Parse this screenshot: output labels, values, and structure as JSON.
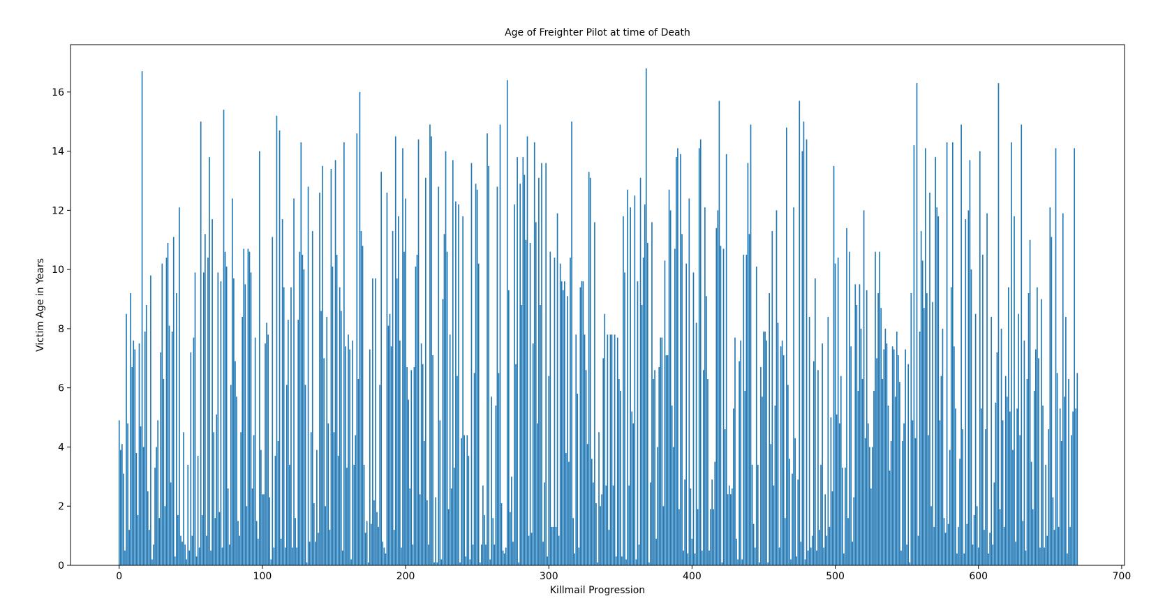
{
  "chart_data": {
    "type": "bar",
    "title": "Age of Freighter Pilot at time of Death",
    "xlabel": "Killmail Progression",
    "ylabel": "Victim Age in Years",
    "color": "#1f77b4",
    "xlim": [
      -34,
      702
    ],
    "ylim": [
      0,
      17.6
    ],
    "xticks": [
      0,
      100,
      200,
      300,
      400,
      500,
      600,
      700
    ],
    "yticks": [
      0,
      2,
      4,
      6,
      8,
      10,
      12,
      14,
      16
    ],
    "x": [
      0,
      1,
      2,
      3,
      4,
      5,
      6,
      7,
      8,
      9,
      10,
      11,
      12,
      13,
      14,
      15,
      16,
      17,
      18,
      19,
      20,
      21,
      22,
      23,
      24,
      25,
      26,
      27,
      28,
      29,
      30,
      31,
      32,
      33,
      34,
      35,
      36,
      37,
      38,
      39,
      40,
      41,
      42,
      43,
      44,
      45,
      46,
      47,
      48,
      49,
      50,
      51,
      52,
      53,
      54,
      55,
      56,
      57,
      58,
      59,
      60,
      61,
      62,
      63,
      64,
      65,
      66,
      67,
      68,
      69,
      70,
      71,
      72,
      73,
      74,
      75,
      76,
      77,
      78,
      79,
      80,
      81,
      82,
      83,
      84,
      85,
      86,
      87,
      88,
      89,
      90,
      91,
      92,
      93,
      94,
      95,
      96,
      97,
      98,
      99,
      100,
      101,
      102,
      103,
      104,
      105,
      106,
      107,
      108,
      109,
      110,
      111,
      112,
      113,
      114,
      115,
      116,
      117,
      118,
      119,
      120,
      121,
      122,
      123,
      124,
      125,
      126,
      127,
      128,
      129,
      130,
      131,
      132,
      133,
      134,
      135,
      136,
      137,
      138,
      139,
      140,
      141,
      142,
      143,
      144,
      145,
      146,
      147,
      148,
      149,
      150,
      151,
      152,
      153,
      154,
      155,
      156,
      157,
      158,
      159,
      160,
      161,
      162,
      163,
      164,
      165,
      166,
      167,
      168,
      169,
      170,
      171,
      172,
      173,
      174,
      175,
      176,
      177,
      178,
      179,
      180,
      181,
      182,
      183,
      184,
      185,
      186,
      187,
      188,
      189,
      190,
      191,
      192,
      193,
      194,
      195,
      196,
      197,
      198,
      199,
      200,
      201,
      202,
      203,
      204,
      205,
      206,
      207,
      208,
      209,
      210,
      211,
      212,
      213,
      214,
      215,
      216,
      217,
      218,
      219,
      220,
      221,
      222,
      223,
      224,
      225,
      226,
      227,
      228,
      229,
      230,
      231,
      232,
      233,
      234,
      235,
      236,
      237,
      238,
      239,
      240,
      241,
      242,
      243,
      244,
      245,
      246,
      247,
      248,
      249,
      250,
      251,
      252,
      253,
      254,
      255,
      256,
      257,
      258,
      259,
      260,
      261,
      262,
      263,
      264,
      265,
      266,
      267,
      268,
      269,
      270,
      271,
      272,
      273,
      274,
      275,
      276,
      277,
      278,
      279,
      280,
      281,
      282,
      283,
      284,
      285,
      286,
      287,
      288,
      289,
      290,
      291,
      292,
      293,
      294,
      295,
      296,
      297,
      298,
      299,
      300,
      301,
      302,
      303,
      304,
      305,
      306,
      307,
      308,
      309,
      310,
      311,
      312,
      313,
      314,
      315,
      316,
      317,
      318,
      319,
      320,
      321,
      322,
      323,
      324,
      325,
      326,
      327,
      328,
      329,
      330,
      331,
      332,
      333,
      334,
      335,
      336,
      337,
      338,
      339,
      340,
      341,
      342,
      343,
      344,
      345,
      346,
      347,
      348,
      349,
      350,
      351,
      352,
      353,
      354,
      355,
      356,
      357,
      358,
      359,
      360,
      361,
      362,
      363,
      364,
      365,
      366,
      367,
      368,
      369,
      370,
      371,
      372,
      373,
      374,
      375,
      376,
      377,
      378,
      379,
      380,
      381,
      382,
      383,
      384,
      385,
      386,
      387,
      388,
      389,
      390,
      391,
      392,
      393,
      394,
      395,
      396,
      397,
      398,
      399,
      400,
      401,
      402,
      403,
      404,
      405,
      406,
      407,
      408,
      409,
      410,
      411,
      412,
      413,
      414,
      415,
      416,
      417,
      418,
      419,
      420,
      421,
      422,
      423,
      424,
      425,
      426,
      427,
      428,
      429,
      430,
      431,
      432,
      433,
      434,
      435,
      436,
      437,
      438,
      439,
      440,
      441,
      442,
      443,
      444,
      445,
      446,
      447,
      448,
      449,
      450,
      451,
      452,
      453,
      454,
      455,
      456,
      457,
      458,
      459,
      460,
      461,
      462,
      463,
      464,
      465,
      466,
      467,
      468,
      469,
      470,
      471,
      472,
      473,
      474,
      475,
      476,
      477,
      478,
      479,
      480,
      481,
      482,
      483,
      484,
      485,
      486,
      487,
      488,
      489,
      490,
      491,
      492,
      493,
      494,
      495,
      496,
      497,
      498,
      499,
      500,
      501,
      502,
      503,
      504,
      505,
      506,
      507,
      508,
      509,
      510,
      511,
      512,
      513,
      514,
      515,
      516,
      517,
      518,
      519,
      520,
      521,
      522,
      523,
      524,
      525,
      526,
      527,
      528,
      529,
      530,
      531,
      532,
      533,
      534,
      535,
      536,
      537,
      538,
      539,
      540,
      541,
      542,
      543,
      544,
      545,
      546,
      547,
      548,
      549,
      550,
      551,
      552,
      553,
      554,
      555,
      556,
      557,
      558,
      559,
      560,
      561,
      562,
      563,
      564,
      565,
      566,
      567,
      568,
      569,
      570,
      571,
      572,
      573,
      574,
      575,
      576,
      577,
      578,
      579,
      580,
      581,
      582,
      583,
      584,
      585,
      586,
      587,
      588,
      589,
      590,
      591,
      592,
      593,
      594,
      595,
      596,
      597,
      598,
      599,
      600,
      601,
      602,
      603,
      604,
      605,
      606,
      607,
      608,
      609,
      610,
      611,
      612,
      613,
      614,
      615,
      616,
      617,
      618,
      619,
      620,
      621,
      622,
      623,
      624,
      625,
      626,
      627,
      628,
      629,
      630,
      631,
      632,
      633,
      634,
      635,
      636,
      637,
      638,
      639,
      640,
      641,
      642,
      643,
      644,
      645,
      646,
      647,
      648,
      649,
      650,
      651,
      652,
      653,
      654,
      655,
      656,
      657,
      658,
      659,
      660,
      661,
      662,
      663,
      664,
      665,
      666,
      667,
      668,
      669
    ],
    "values": [
      4.9,
      3.9,
      4.1,
      3.1,
      0.5,
      8.5,
      4.8,
      1.2,
      9.2,
      6.7,
      7.6,
      7.3,
      3.8,
      1.7,
      7.5,
      4.7,
      16.7,
      4.0,
      7.9,
      8.8,
      2.5,
      1.2,
      9.8,
      0.2,
      0.7,
      3.3,
      4.0,
      4.9,
      1.6,
      7.2,
      10.2,
      6.3,
      2.0,
      10.4,
      10.9,
      8.1,
      2.8,
      7.9,
      11.1,
      0.3,
      9.2,
      1.7,
      12.1,
      1.0,
      0.8,
      4.5,
      0.7,
      0.2,
      3.4,
      0.5,
      7.2,
      1.0,
      7.7,
      9.9,
      0.3,
      3.7,
      0.6,
      15.0,
      1.7,
      9.9,
      11.2,
      1.0,
      10.4,
      13.8,
      0.5,
      11.7,
      4.5,
      1.6,
      5.1,
      9.9,
      1.8,
      9.6,
      0.6,
      15.4,
      10.6,
      10.1,
      2.6,
      0.7,
      6.1,
      12.4,
      9.7,
      6.9,
      5.7,
      1.5,
      1.0,
      4.5,
      8.4,
      10.7,
      9.5,
      2.0,
      10.7,
      10.6,
      9.9,
      2.6,
      4.4,
      7.7,
      1.5,
      0.9,
      14.0,
      3.9,
      2.4,
      2.4,
      7.5,
      8.2,
      7.8,
      2.3,
      0.2,
      11.1,
      0.6,
      3.7,
      15.2,
      4.2,
      14.7,
      0.9,
      11.7,
      9.4,
      0.6,
      6.1,
      8.3,
      3.4,
      9.4,
      0.6,
      12.4,
      1.6,
      0.6,
      8.3,
      10.6,
      14.3,
      10.5,
      10.0,
      6.1,
      0.1,
      12.8,
      0.8,
      4.5,
      11.3,
      2.1,
      0.8,
      3.9,
      1.1,
      12.6,
      8.6,
      13.5,
      7.0,
      2.0,
      8.4,
      4.8,
      1.2,
      13.4,
      10.1,
      4.5,
      13.7,
      10.5,
      3.7,
      9.4,
      8.6,
      0.5,
      14.3,
      7.4,
      3.3,
      7.8,
      7.3,
      0.2,
      7.6,
      3.4,
      4.4,
      14.6,
      6.3,
      16.0,
      11.3,
      10.8,
      3.4,
      1.1,
      1.5,
      0.1,
      7.3,
      1.4,
      9.7,
      2.2,
      9.7,
      1.8,
      1.3,
      6.1,
      13.3,
      0.8,
      0.6,
      0.4,
      12.6,
      8.1,
      8.5,
      7.4,
      11.3,
      1.2,
      14.5,
      9.7,
      11.8,
      7.6,
      0.6,
      14.1,
      10.6,
      12.4,
      6.7,
      5.6,
      2.6,
      6.6,
      0.7,
      6.7,
      10.1,
      10.5,
      14.4,
      2.4,
      7.5,
      6.8,
      4.2,
      13.1,
      2.2,
      0.7,
      14.9,
      14.5,
      7.1,
      0.1,
      2.3,
      0.1,
      12.8,
      4.9,
      0.2,
      9.0,
      11.2,
      14.0,
      10.6,
      1.9,
      7.8,
      2.6,
      13.7,
      3.3,
      12.3,
      6.4,
      12.2,
      0.1,
      4.3,
      11.8,
      4.4,
      0.3,
      4.4,
      3.7,
      0.2,
      13.6,
      0.7,
      6.5,
      12.9,
      12.7,
      10.2,
      0.1,
      0.7,
      2.7,
      1.7,
      0.7,
      14.6,
      13.5,
      0.2,
      5.7,
      1.6,
      0.7,
      5.4,
      12.8,
      6.5,
      14.9,
      2.1,
      0.5,
      0.4,
      0.6,
      16.4,
      9.3,
      1.8,
      3.0,
      0.8,
      12.2,
      6.8,
      13.8,
      0.1,
      12.9,
      8.8,
      13.8,
      13.2,
      11.0,
      14.5,
      1.0,
      10.9,
      1.1,
      7.5,
      14.3,
      11.6,
      4.8,
      13.1,
      8.8,
      13.6,
      0.8,
      2.8,
      13.6,
      0.3,
      6.4,
      10.6,
      1.3,
      1.3,
      10.4,
      1.3,
      11.9,
      1.0,
      10.2,
      9.6,
      9.3,
      9.6,
      3.8,
      9.1,
      3.5,
      10.4,
      15.0,
      1.6,
      0.4,
      7.8,
      5.8,
      0.6,
      9.4,
      9.6,
      9.6,
      7.8,
      6.6,
      4.1,
      13.3,
      13.1,
      3.6,
      2.8,
      11.6,
      2.1,
      0.1,
      4.5,
      2.0,
      2.4,
      7.0,
      8.5,
      2.7,
      7.8,
      1.2,
      7.8,
      7.8,
      2.7,
      7.8,
      0.3,
      7.7,
      6.3,
      5.9,
      0.3,
      11.8,
      9.9,
      0.2,
      12.7,
      2.7,
      12.1,
      5.2,
      4.8,
      12.5,
      0.2,
      9.6,
      0.7,
      13.1,
      8.8,
      10.4,
      12.2,
      16.8,
      10.9,
      0.1,
      2.8,
      11.6,
      6.3,
      6.6,
      0.9,
      4.0,
      6.7,
      7.7,
      7.7,
      2.0,
      10.3,
      7.1,
      7.1,
      12.7,
      12.0,
      5.4,
      4.0,
      10.7,
      13.8,
      14.1,
      1.9,
      13.9,
      11.2,
      0.5,
      2.9,
      10.2,
      0.4,
      12.4,
      2.6,
      0.9,
      9.9,
      0.4,
      8.2,
      1.9,
      14.1,
      14.4,
      0.5,
      6.6,
      12.1,
      9.1,
      6.3,
      0.5,
      1.9,
      2.9,
      1.9,
      3.5,
      11.4,
      12.0,
      15.7,
      10.8,
      0.1,
      10.7,
      4.6,
      13.9,
      2.4,
      2.7,
      2.4,
      2.6,
      5.3,
      7.7,
      0.9,
      0.2,
      6.9,
      7.6,
      0.2,
      10.5,
      5.9,
      10.5,
      13.6,
      11.2,
      14.9,
      3.4,
      1.4,
      0.6,
      10.1,
      3.4,
      0.1,
      6.7,
      5.7,
      7.9,
      7.9,
      7.6,
      0.1,
      9.2,
      4.1,
      11.3,
      2.7,
      5.4,
      12.0,
      8.2,
      0.6,
      7.4,
      7.6,
      7.1,
      1.6,
      14.8,
      6.1,
      3.6,
      0.2,
      3.1,
      12.1,
      4.3,
      0.3,
      2.9,
      15.7,
      0.8,
      14.0,
      15.0,
      0.2,
      14.4,
      0.5,
      8.4,
      0.6,
      1.0,
      6.9,
      9.7,
      0.5,
      6.6,
      1.2,
      3.4,
      7.5,
      0.6,
      2.4,
      1.0,
      8.4,
      1.3,
      5.0,
      2.5,
      13.5,
      10.2,
      5.1,
      10.4,
      4.8,
      6.4,
      3.3,
      0.4,
      3.3,
      11.4,
      1.6,
      10.6,
      7.4,
      0.8,
      2.3,
      9.5,
      8.8,
      5.9,
      9.5,
      8.0,
      6.3,
      12.0,
      4.3,
      9.3,
      4.8,
      4.0,
      2.6,
      4.0,
      5.9,
      10.6,
      7.0,
      9.2,
      10.6,
      8.7,
      6.3,
      7.3,
      8.0,
      7.5,
      5.4,
      3.2,
      4.2,
      7.4,
      7.3,
      5.7,
      7.9,
      7.1,
      6.2,
      0.5,
      4.2,
      4.8,
      7.3,
      0.7,
      6.8,
      0.1,
      9.2,
      4.9,
      14.2,
      4.3,
      16.3,
      1.0,
      7.9,
      11.3,
      10.3,
      8.7,
      14.1,
      9.2,
      4.4,
      12.6,
      2.0,
      8.9,
      1.3,
      13.8,
      12.1,
      11.8,
      4.9,
      6.4,
      8.0,
      1.6,
      1.1,
      14.3,
      1.4,
      3.9,
      9.4,
      14.3,
      7.4,
      5.3,
      0.4,
      1.3,
      3.6,
      14.9,
      4.6,
      0.4,
      11.7,
      1.4,
      12.0,
      13.7,
      10.0,
      0.7,
      1.7,
      8.5,
      2.0,
      0.6,
      14.0,
      5.3,
      10.5,
      1.2,
      4.6,
      11.9,
      0.4,
      1.1,
      8.4,
      0.7,
      2.8,
      5.5,
      7.2,
      16.3,
      1.9,
      8.0,
      4.9,
      1.3,
      6.4,
      5.7,
      9.4,
      5.2,
      14.3,
      3.9,
      11.8,
      0.8,
      5.3,
      8.5,
      4.4,
      14.9,
      1.5,
      7.6,
      0.5,
      6.3,
      9.2,
      11.0,
      3.5,
      1.9,
      5.9,
      7.3,
      9.4,
      7.0,
      0.6,
      9.0,
      5.4,
      0.6,
      3.4,
      1.0,
      4.6,
      12.1,
      11.1,
      2.3,
      1.2,
      14.1,
      6.5,
      1.3,
      5.3,
      4.2,
      11.9,
      5.7,
      8.4,
      0.4,
      6.3,
      1.3,
      4.4,
      5.2,
      14.1,
      5.3,
      6.5
    ]
  }
}
